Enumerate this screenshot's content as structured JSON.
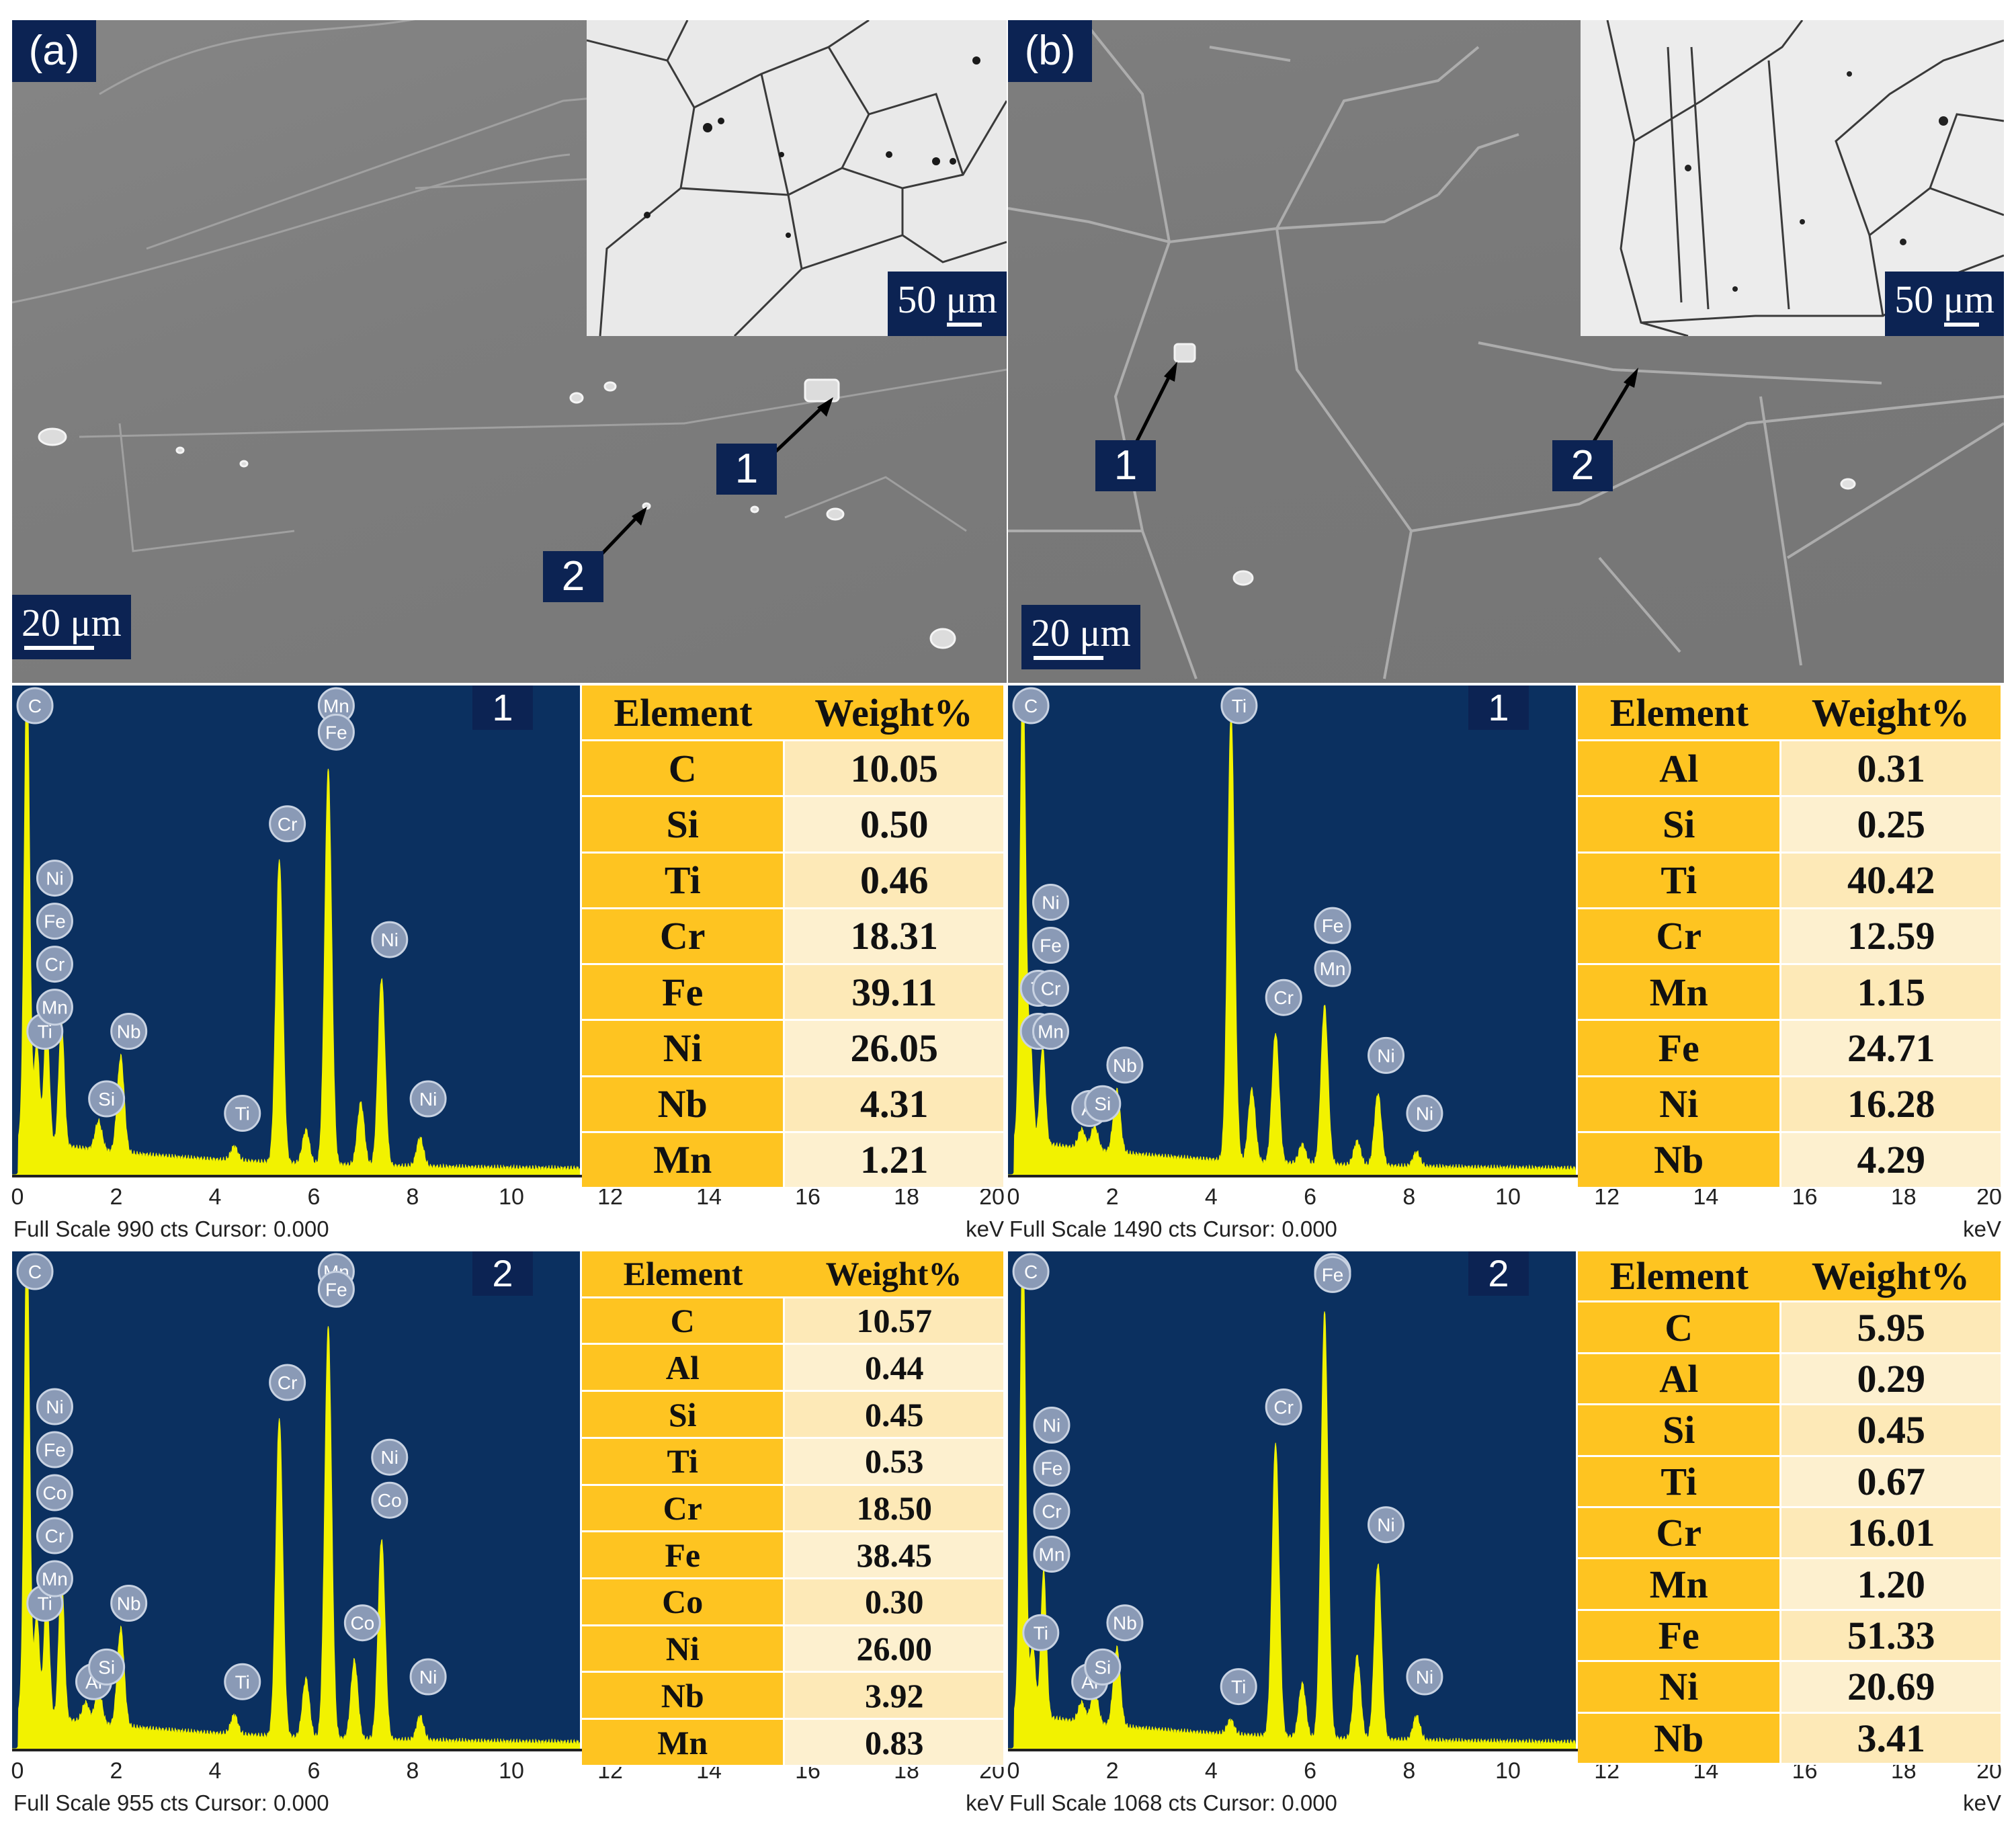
{
  "figure": {
    "panels": [
      {
        "letter": "(a)",
        "scale_main": "20 μm",
        "scale_inset": "50 μm",
        "markers": [
          "1",
          "2"
        ]
      },
      {
        "letter": "(b)",
        "scale_main": "20 μm",
        "scale_inset": "50 μm",
        "markers": [
          "1",
          "2"
        ]
      }
    ],
    "spectra": [
      {
        "id": "a1",
        "marker": "1",
        "footer": "Full Scale 990 cts Cursor: 0.000",
        "unit": "keV",
        "x_ticks": [
          "0",
          "2",
          "4",
          "6",
          "8",
          "10",
          "12",
          "14",
          "16",
          "18",
          "20"
        ],
        "table_header": [
          "Element",
          "Weight%"
        ],
        "rows": [
          [
            "C",
            "10.05"
          ],
          [
            "Si",
            "0.50"
          ],
          [
            "Ti",
            "0.46"
          ],
          [
            "Cr",
            "18.31"
          ],
          [
            "Fe",
            "39.11"
          ],
          [
            "Ni",
            "26.05"
          ],
          [
            "Nb",
            "4.31"
          ],
          [
            "Mn",
            "1.21"
          ]
        ],
        "peaks": [
          {
            "kev": 0.3,
            "h": 0.98,
            "labels": [
              "C"
            ]
          },
          {
            "kev": 0.5,
            "h": 0.2,
            "labels": [
              "Ti"
            ]
          },
          {
            "kev": 0.7,
            "h": 0.25,
            "labels": [
              "Ni",
              "Fe",
              "Cr",
              "Mn"
            ]
          },
          {
            "kev": 1.0,
            "h": 0.26,
            "labels": []
          },
          {
            "kev": 1.75,
            "h": 0.06,
            "labels": [
              "Si"
            ]
          },
          {
            "kev": 2.2,
            "h": 0.2,
            "labels": [
              "Nb"
            ]
          },
          {
            "kev": 4.5,
            "h": 0.03,
            "labels": [
              "Ti"
            ]
          },
          {
            "kev": 5.41,
            "h": 0.63,
            "labels": [
              "Cr"
            ]
          },
          {
            "kev": 5.95,
            "h": 0.07,
            "labels": []
          },
          {
            "kev": 6.4,
            "h": 0.82,
            "labels": [
              "Mn",
              "Fe"
            ]
          },
          {
            "kev": 7.06,
            "h": 0.13,
            "labels": []
          },
          {
            "kev": 7.48,
            "h": 0.39,
            "labels": [
              "Ni"
            ]
          },
          {
            "kev": 8.26,
            "h": 0.06,
            "labels": [
              "Ni"
            ]
          }
        ]
      },
      {
        "id": "b1",
        "marker": "1",
        "footer": "Full Scale 1490 cts Cursor: 0.000",
        "unit": "keV",
        "x_ticks": [
          "0",
          "2",
          "4",
          "6",
          "8",
          "10",
          "12",
          "14",
          "16",
          "18",
          "20"
        ],
        "table_header": [
          "Element",
          "Weight%"
        ],
        "rows": [
          [
            "Al",
            "0.31"
          ],
          [
            "Si",
            "0.25"
          ],
          [
            "Ti",
            "40.42"
          ],
          [
            "Cr",
            "12.59"
          ],
          [
            "Mn",
            "1.15"
          ],
          [
            "Fe",
            "24.71"
          ],
          [
            "Ni",
            "16.28"
          ],
          [
            "Nb",
            "4.29"
          ]
        ],
        "peaks": [
          {
            "kev": 0.3,
            "h": 0.98,
            "labels": [
              "C"
            ]
          },
          {
            "kev": 0.45,
            "h": 0.2,
            "labels": [
              "Ti",
              "N"
            ]
          },
          {
            "kev": 0.7,
            "h": 0.2,
            "labels": [
              "Ni",
              "Fe",
              "Cr",
              "Mn"
            ]
          },
          {
            "kev": 1.49,
            "h": 0.04,
            "labels": [
              "Al"
            ]
          },
          {
            "kev": 1.75,
            "h": 0.05,
            "labels": [
              "Si"
            ]
          },
          {
            "kev": 2.2,
            "h": 0.13,
            "labels": [
              "Nb"
            ]
          },
          {
            "kev": 4.51,
            "h": 0.93,
            "labels": [
              "Ti"
            ]
          },
          {
            "kev": 4.93,
            "h": 0.15,
            "labels": []
          },
          {
            "kev": 5.41,
            "h": 0.27,
            "labels": [
              "Cr"
            ]
          },
          {
            "kev": 5.95,
            "h": 0.04,
            "labels": []
          },
          {
            "kev": 6.4,
            "h": 0.33,
            "labels": [
              "Fe",
              "Mn"
            ]
          },
          {
            "kev": 7.06,
            "h": 0.05,
            "labels": []
          },
          {
            "kev": 7.48,
            "h": 0.15,
            "labels": [
              "Ni"
            ]
          },
          {
            "kev": 8.26,
            "h": 0.03,
            "labels": [
              "Ni"
            ]
          }
        ]
      },
      {
        "id": "a2",
        "marker": "2",
        "footer": "Full Scale 955 cts Cursor: 0.000",
        "unit": "keV",
        "x_ticks": [
          "0",
          "2",
          "4",
          "6",
          "8",
          "10",
          "12",
          "14",
          "16",
          "18",
          "20"
        ],
        "table_header": [
          "Element",
          "Weight%"
        ],
        "rows": [
          [
            "C",
            "10.57"
          ],
          [
            "Al",
            "0.44"
          ],
          [
            "Si",
            "0.45"
          ],
          [
            "Ti",
            "0.53"
          ],
          [
            "Cr",
            "18.50"
          ],
          [
            "Fe",
            "38.45"
          ],
          [
            "Co",
            "0.30"
          ],
          [
            "Ni",
            "26.00"
          ],
          [
            "Nb",
            "3.92"
          ],
          [
            "Mn",
            "0.83"
          ]
        ],
        "peaks": [
          {
            "kev": 0.3,
            "h": 0.98,
            "labels": [
              "C"
            ]
          },
          {
            "kev": 0.5,
            "h": 0.2,
            "labels": [
              "Ti"
            ]
          },
          {
            "kev": 0.7,
            "h": 0.25,
            "labels": [
              "Ni",
              "Fe",
              "Co",
              "Cr",
              "Mn"
            ]
          },
          {
            "kev": 1.0,
            "h": 0.3,
            "labels": []
          },
          {
            "kev": 1.49,
            "h": 0.04,
            "labels": [
              "Al"
            ]
          },
          {
            "kev": 1.75,
            "h": 0.07,
            "labels": [
              "Si"
            ]
          },
          {
            "kev": 2.2,
            "h": 0.2,
            "labels": [
              "Nb"
            ]
          },
          {
            "kev": 4.5,
            "h": 0.04,
            "labels": [
              "Ti"
            ]
          },
          {
            "kev": 5.41,
            "h": 0.65,
            "labels": [
              "Cr"
            ]
          },
          {
            "kev": 5.95,
            "h": 0.12,
            "labels": []
          },
          {
            "kev": 6.4,
            "h": 0.84,
            "labels": [
              "Mn",
              "Fe"
            ]
          },
          {
            "kev": 6.93,
            "h": 0.16,
            "labels": [
              "Co"
            ]
          },
          {
            "kev": 7.48,
            "h": 0.41,
            "labels": [
              "Ni",
              "Co"
            ]
          },
          {
            "kev": 8.26,
            "h": 0.05,
            "labels": [
              "Ni"
            ]
          }
        ]
      },
      {
        "id": "b2",
        "marker": "2",
        "footer": "Full Scale 1068 cts Cursor: 0.000",
        "unit": "keV",
        "x_ticks": [
          "0",
          "2",
          "4",
          "6",
          "8",
          "10",
          "12",
          "14",
          "16",
          "18",
          "20"
        ],
        "table_header": [
          "Element",
          "Weight%"
        ],
        "rows": [
          [
            "C",
            "5.95"
          ],
          [
            "Al",
            "0.29"
          ],
          [
            "Si",
            "0.45"
          ],
          [
            "Ti",
            "0.67"
          ],
          [
            "Cr",
            "16.01"
          ],
          [
            "Mn",
            "1.20"
          ],
          [
            "Fe",
            "51.33"
          ],
          [
            "Ni",
            "20.69"
          ],
          [
            "Nb",
            "3.41"
          ]
        ],
        "peaks": [
          {
            "kev": 0.3,
            "h": 0.98,
            "labels": [
              "C"
            ]
          },
          {
            "kev": 0.5,
            "h": 0.14,
            "labels": [
              "Ti"
            ]
          },
          {
            "kev": 0.72,
            "h": 0.3,
            "labels": [
              "Ni",
              "Fe",
              "Cr",
              "Mn"
            ]
          },
          {
            "kev": 1.49,
            "h": 0.04,
            "labels": [
              "Al"
            ]
          },
          {
            "kev": 1.75,
            "h": 0.07,
            "labels": [
              "Si"
            ]
          },
          {
            "kev": 2.2,
            "h": 0.16,
            "labels": [
              "Nb"
            ]
          },
          {
            "kev": 4.5,
            "h": 0.03,
            "labels": [
              "Ti"
            ]
          },
          {
            "kev": 5.41,
            "h": 0.6,
            "labels": [
              "Cr"
            ]
          },
          {
            "kev": 5.95,
            "h": 0.11,
            "labels": []
          },
          {
            "kev": 6.4,
            "h": 0.87,
            "labels": [
              "Mn",
              "Fe"
            ]
          },
          {
            "kev": 7.06,
            "h": 0.17,
            "labels": []
          },
          {
            "kev": 7.48,
            "h": 0.36,
            "labels": [
              "Ni"
            ]
          },
          {
            "kev": 8.26,
            "h": 0.05,
            "labels": [
              "Ni"
            ]
          }
        ]
      }
    ],
    "colors": {
      "label_box": "#0c2353",
      "plot_bg": "#0b3060",
      "spectrum": "#f2f200",
      "table_header": "#fec421",
      "table_cell": "#fde9b7"
    }
  }
}
